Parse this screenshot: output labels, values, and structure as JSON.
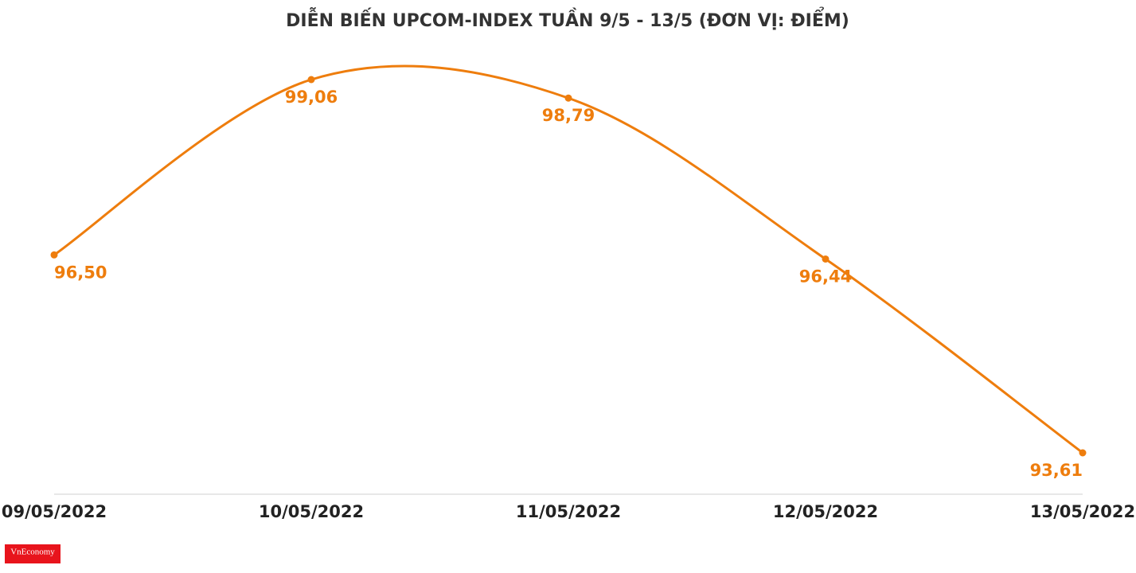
{
  "chart_data": {
    "type": "line",
    "title": "DIỄN BIẾN UPCOM-INDEX TUẦN 9/5 - 13/5 (ĐƠN VỊ: ĐIỂM)",
    "categories": [
      "09/05/2022",
      "10/05/2022",
      "11/05/2022",
      "12/05/2022",
      "13/05/2022"
    ],
    "series": [
      {
        "name": "UPCOM-Index",
        "color": "#ee7d0d",
        "values": [
          96.5,
          99.06,
          98.79,
          96.44,
          93.61
        ],
        "value_labels": [
          "96,50",
          "99,06",
          "98,79",
          "96,44",
          "93,61"
        ]
      }
    ],
    "grid": false,
    "watermark": "VnEconomy"
  }
}
